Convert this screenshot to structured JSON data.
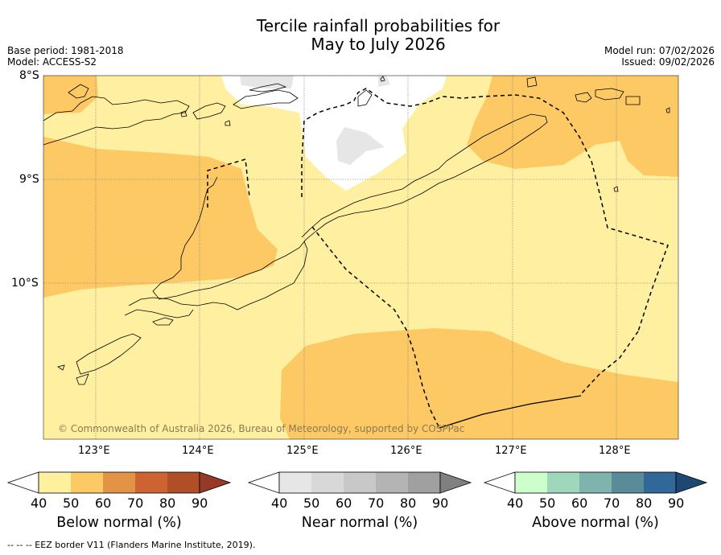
{
  "title": {
    "line1": "Tercile rainfall probabilities for",
    "line2": "May to July 2026"
  },
  "meta": {
    "base_period": "Base period: 1981-2018",
    "model": "Model: ACCESS-S2",
    "model_run": "Model run: 07/02/2026",
    "issued": "Issued: 09/02/2026"
  },
  "map": {
    "lat_labels": [
      "8°S",
      "9°S",
      "10°S"
    ],
    "lon_labels": [
      "123°E",
      "124°E",
      "125°E",
      "126°E",
      "127°E",
      "128°E"
    ],
    "copyright": "© Commonwealth of Australia 2026, Bureau of Meteorology, supported by COSPPac",
    "colors": {
      "ocean_50": "#fef0a0",
      "below_60": "#fdc964",
      "near_50": "#e6e6e6",
      "no_dominant": "#ffffff",
      "coastline": "#000000",
      "eez": "#000000"
    }
  },
  "colorbars": [
    {
      "name": "below",
      "title": "Below normal (%)",
      "ticks": [
        "40",
        "50",
        "60",
        "70",
        "80",
        "90"
      ],
      "colors": [
        "#ffffff",
        "#fff09e",
        "#fdc964",
        "#e29345",
        "#cd6331",
        "#b04e28",
        "#963927"
      ]
    },
    {
      "name": "near",
      "title": "Near normal (%)",
      "ticks": [
        "40",
        "50",
        "60",
        "70",
        "80",
        "90"
      ],
      "colors": [
        "#ffffff",
        "#e6e6e6",
        "#d8d8d8",
        "#c8c8c8",
        "#b4b4b4",
        "#a0a0a0",
        "#808080"
      ]
    },
    {
      "name": "above",
      "title": "Above normal (%)",
      "ticks": [
        "40",
        "50",
        "60",
        "70",
        "80",
        "90"
      ],
      "colors": [
        "#ffffff",
        "#ccffcc",
        "#9fd7bd",
        "#7fb3ae",
        "#598b99",
        "#326799",
        "#1c4873"
      ]
    }
  ],
  "footer": {
    "eez_note": "--  --  -- EEZ border V11 (Flanders Marine Institute, 2019)."
  }
}
